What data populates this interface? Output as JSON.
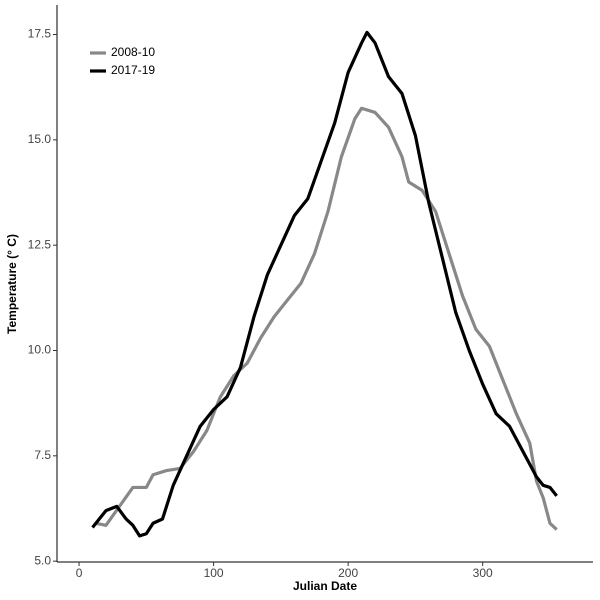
{
  "chart_data": {
    "type": "line",
    "x_label": "Julian Date",
    "y_label": "Temperature (° C)",
    "xlim": [
      -16.4,
      382
    ],
    "ylim": [
      4.98,
      18.2
    ],
    "xticks": [
      0,
      100,
      200,
      300
    ],
    "yticks": [
      {
        "value": 5,
        "label": "5.0"
      },
      {
        "value": 7.5,
        "label": "7.5"
      },
      {
        "value": 10,
        "label": "10.0"
      },
      {
        "value": 12.5,
        "label": "12.5"
      },
      {
        "value": 15,
        "label": "15.0"
      },
      {
        "value": 17.5,
        "label": "17.5"
      }
    ],
    "grid": false,
    "legend": "top-left",
    "series": [
      {
        "name": "2008-10",
        "color": "#888888",
        "x": [
          12,
          20,
          30,
          40,
          50,
          55,
          65,
          75,
          85,
          95,
          105,
          115,
          125,
          135,
          145,
          155,
          165,
          175,
          185,
          195,
          205,
          210,
          220,
          230,
          240,
          245,
          255,
          265,
          275,
          285,
          295,
          305,
          315,
          325,
          335,
          340,
          345,
          350,
          355
        ],
        "values": [
          5.9,
          5.85,
          6.3,
          6.75,
          6.75,
          7.05,
          7.15,
          7.2,
          7.6,
          8.1,
          8.9,
          9.4,
          9.7,
          10.3,
          10.8,
          11.2,
          11.6,
          12.3,
          13.3,
          14.6,
          15.5,
          15.75,
          15.65,
          15.3,
          14.6,
          14.0,
          13.8,
          13.3,
          12.3,
          11.3,
          10.5,
          10.1,
          9.3,
          8.5,
          7.8,
          6.9,
          6.5,
          5.9,
          5.75
        ]
      },
      {
        "name": "2017-19",
        "color": "#000000",
        "x": [
          10,
          15,
          20,
          28,
          35,
          40,
          45,
          50,
          55,
          62,
          70,
          80,
          90,
          100,
          110,
          120,
          130,
          140,
          150,
          160,
          170,
          180,
          190,
          200,
          210,
          214,
          220,
          230,
          240,
          250,
          260,
          270,
          280,
          290,
          300,
          310,
          320,
          330,
          340,
          345,
          350,
          355
        ],
        "values": [
          5.8,
          6.0,
          6.2,
          6.3,
          6.0,
          5.85,
          5.6,
          5.65,
          5.9,
          6.0,
          6.8,
          7.5,
          8.2,
          8.6,
          8.9,
          9.6,
          10.8,
          11.8,
          12.5,
          13.2,
          13.6,
          14.5,
          15.4,
          16.6,
          17.3,
          17.55,
          17.3,
          16.5,
          16.1,
          15.1,
          13.5,
          12.2,
          10.9,
          10.0,
          9.2,
          8.5,
          8.2,
          7.6,
          7.0,
          6.8,
          6.75,
          6.55
        ]
      }
    ]
  }
}
